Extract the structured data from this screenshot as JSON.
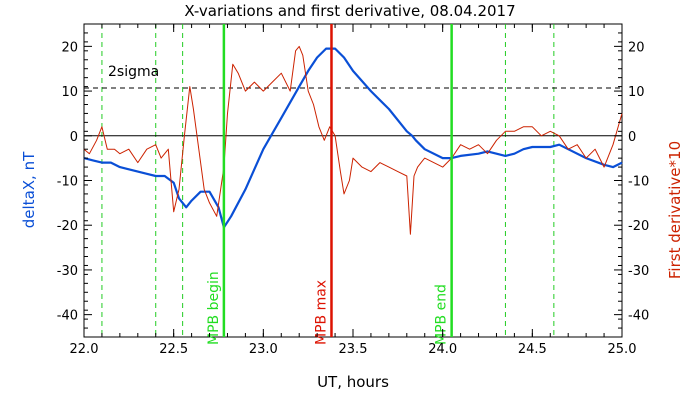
{
  "chart_data": {
    "type": "line",
    "title": "X-variations and first derivative, 08.04.2017",
    "xlabel": "UT, hours",
    "ylabel_left": "deltaX, nT",
    "ylabel_right": "First derivative*10",
    "xlim": [
      22.0,
      25.0
    ],
    "ylim": [
      -45,
      25
    ],
    "x_ticks": [
      "22.0",
      "22.5",
      "23.0",
      "23.5",
      "24.0",
      "24.5",
      "25.0"
    ],
    "y_ticks": [
      "20",
      "10",
      "0",
      "-10",
      "-20",
      "-30",
      "-40"
    ],
    "threshold": {
      "label": "2sigma",
      "value": 10.7
    },
    "zero_line": 0,
    "colors": {
      "deltax": "#0a4fd6",
      "derivative": "#cc2200",
      "mpb_markers": "#22dd22",
      "mpb_max": "#dd1100",
      "dashed_markers": "#22cc22"
    },
    "dashed_markers_x": [
      22.1,
      22.4,
      22.55,
      24.35,
      24.62
    ],
    "markers": [
      {
        "label": "MPB begin",
        "x": 22.78,
        "color": "#22dd22"
      },
      {
        "label": "MPB max",
        "x": 23.38,
        "color": "#dd1100"
      },
      {
        "label": "MPB end",
        "x": 24.05,
        "color": "#22dd22"
      }
    ],
    "series": [
      {
        "name": "deltaX, nT",
        "axis": "left",
        "color": "#0a4fd6",
        "x": [
          22.0,
          22.05,
          22.1,
          22.15,
          22.2,
          22.25,
          22.3,
          22.35,
          22.4,
          22.45,
          22.5,
          22.53,
          22.57,
          22.6,
          22.65,
          22.7,
          22.75,
          22.78,
          22.82,
          22.9,
          23.0,
          23.1,
          23.2,
          23.25,
          23.3,
          23.35,
          23.4,
          23.45,
          23.5,
          23.6,
          23.7,
          23.8,
          23.83,
          23.85,
          23.9,
          24.0,
          24.05,
          24.1,
          24.2,
          24.25,
          24.3,
          24.35,
          24.4,
          24.45,
          24.5,
          24.55,
          24.6,
          24.65,
          24.7,
          24.8,
          24.9,
          24.95,
          25.0
        ],
        "y": [
          -5,
          -5.5,
          -6,
          -6,
          -7,
          -7.5,
          -8,
          -8.5,
          -9,
          -9,
          -10.5,
          -14,
          -16,
          -14.5,
          -12.5,
          -12.5,
          -16,
          -20.5,
          -18,
          -12,
          -3,
          4,
          11,
          14.5,
          17.5,
          19.5,
          19.5,
          17.5,
          14.5,
          10,
          6,
          1,
          0,
          -1,
          -3,
          -5,
          -5,
          -4.5,
          -4,
          -3.5,
          -4,
          -4.5,
          -4,
          -3,
          -2.5,
          -2.5,
          -2.5,
          -2,
          -3,
          -5,
          -6.5,
          -7,
          -6
        ]
      },
      {
        "name": "First derivative*10",
        "axis": "right",
        "color": "#cc2200",
        "x": [
          22.0,
          22.03,
          22.07,
          22.1,
          22.13,
          22.17,
          22.2,
          22.25,
          22.3,
          22.35,
          22.4,
          22.43,
          22.47,
          22.5,
          22.53,
          22.56,
          22.59,
          22.61,
          22.64,
          22.67,
          22.7,
          22.74,
          22.78,
          22.8,
          22.83,
          22.86,
          22.9,
          22.95,
          23.0,
          23.05,
          23.1,
          23.15,
          23.18,
          23.2,
          23.22,
          23.25,
          23.28,
          23.31,
          23.34,
          23.37,
          23.4,
          23.43,
          23.45,
          23.48,
          23.5,
          23.55,
          23.6,
          23.65,
          23.7,
          23.75,
          23.8,
          23.82,
          23.84,
          23.86,
          23.88,
          23.9,
          23.95,
          24.0,
          24.05,
          24.1,
          24.15,
          24.2,
          24.25,
          24.3,
          24.35,
          24.4,
          24.45,
          24.5,
          24.55,
          24.6,
          24.65,
          24.7,
          24.75,
          24.8,
          24.85,
          24.9,
          24.95,
          25.0
        ],
        "y": [
          -3,
          -4,
          -1,
          2,
          -3,
          -3,
          -4,
          -3,
          -6,
          -3,
          -2,
          -5,
          -3,
          -17,
          -12,
          0,
          11,
          6,
          -3,
          -12,
          -15,
          -18,
          -7,
          5,
          16,
          14,
          10,
          12,
          10,
          12,
          14,
          10,
          19,
          20,
          18,
          10,
          7,
          2,
          -1,
          2,
          0,
          -8,
          -13,
          -10,
          -5,
          -7,
          -8,
          -6,
          -7,
          -8,
          -9,
          -22,
          -9,
          -7,
          -6,
          -5,
          -6,
          -7,
          -5,
          -2,
          -3,
          -2,
          -4,
          -1,
          1,
          1,
          2,
          2,
          0,
          1,
          0,
          -3,
          -2,
          -5,
          -3,
          -7,
          -2,
          5
        ]
      }
    ]
  }
}
